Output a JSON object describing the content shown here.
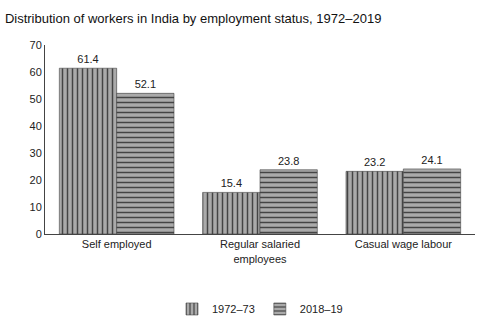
{
  "chart_data": {
    "type": "bar",
    "title": "Distribution of workers in India by employment status, 1972–2019",
    "categories": [
      "Self employed",
      "Regular salaried\nemployees",
      "Casual wage labour"
    ],
    "series": [
      {
        "name": "1972–73",
        "color": "#aaaaaa",
        "values": [
          61.4,
          15.4,
          23.2
        ]
      },
      {
        "name": "2018–19",
        "color": "#aaaaaa",
        "values": [
          52.1,
          23.8,
          24.1
        ]
      }
    ],
    "ylim": [
      0,
      70
    ],
    "yticks": [
      0,
      10,
      20,
      30,
      40,
      50,
      60,
      70
    ],
    "grid": false,
    "legend": "lower center",
    "data_labels": true
  }
}
